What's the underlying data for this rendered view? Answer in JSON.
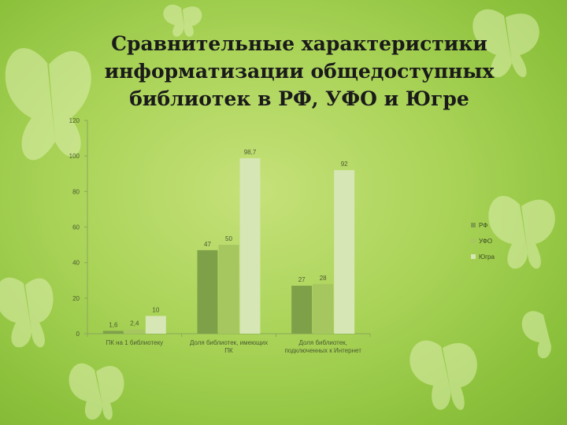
{
  "title_lines": [
    "Сравнительные характеристики",
    "информатизации общедоступных",
    "библиотек в РФ, УФО и Югре"
  ],
  "colors": {
    "rf": "#7ea049",
    "ufo": "#a6c75f",
    "yugra": "#d6e6b4",
    "axis": "#8aa85a",
    "tick_text": "#4a5a30"
  },
  "chart_data": {
    "type": "bar",
    "title": "Сравнительные характеристики информатизации общедоступных библиотек в РФ, УФО и Югре",
    "categories": [
      [
        "ПК на 1 библиотеку"
      ],
      [
        "Доля библиотек, имеющих",
        "ПК"
      ],
      [
        "Доля библиотек,",
        "подключенных к Интернет"
      ]
    ],
    "series": [
      {
        "name": "РФ",
        "values": [
          1.6,
          47,
          27
        ],
        "labels": [
          "1,6",
          "47",
          "27"
        ]
      },
      {
        "name": "УФО",
        "values": [
          2.4,
          50,
          28
        ],
        "labels": [
          "2,4",
          "50",
          "28"
        ]
      },
      {
        "name": "Югра",
        "values": [
          10,
          98.7,
          92
        ],
        "labels": [
          "10",
          "98,7",
          "92"
        ]
      }
    ],
    "ylim": [
      0,
      120
    ],
    "yticks": [
      0,
      20,
      40,
      60,
      80,
      100,
      120
    ],
    "legend_position": "right",
    "grid": false
  }
}
